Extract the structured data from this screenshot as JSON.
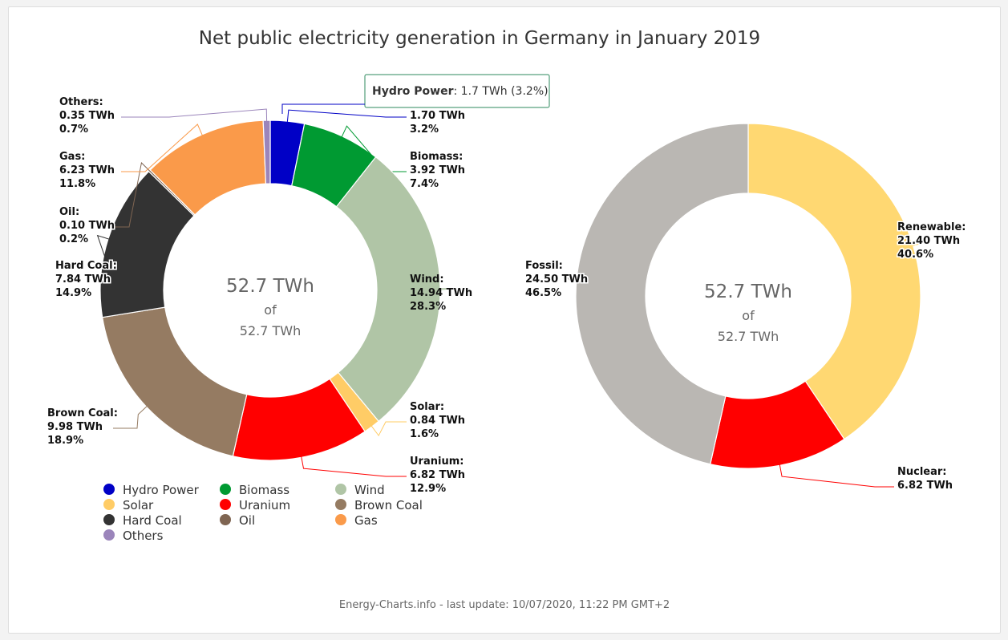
{
  "title": "Net public electricity generation in Germany in January 2019",
  "credits": "Energy-Charts.info - last update: 10/07/2020, 11:22 PM GMT+2",
  "tooltip": {
    "name": "Hydro Power",
    "value": "1.7 TWh (3.2%)"
  },
  "chart_data": [
    {
      "type": "pie",
      "variant": "donut",
      "center_value": "52.7 TWh",
      "center_of": "of",
      "center_total": "52.7 TWh",
      "unit": "TWh",
      "series": [
        {
          "name": "Hydro Power",
          "value": 1.7,
          "value_label": "1.70 TWh",
          "percent": "3.2%",
          "color": "#0000c6"
        },
        {
          "name": "Biomass",
          "value": 3.92,
          "value_label": "3.92 TWh",
          "percent": "7.4%",
          "color": "#009a32"
        },
        {
          "name": "Wind",
          "value": 14.94,
          "value_label": "14.94 TWh",
          "percent": "28.3%",
          "color": "#b0c5a6"
        },
        {
          "name": "Solar",
          "value": 0.84,
          "value_label": "0.84 TWh",
          "percent": "1.6%",
          "color": "#ffcc66"
        },
        {
          "name": "Uranium",
          "value": 6.82,
          "value_label": "6.82 TWh",
          "percent": "12.9%",
          "color": "#ff0000"
        },
        {
          "name": "Brown Coal",
          "value": 9.98,
          "value_label": "9.98 TWh",
          "percent": "18.9%",
          "color": "#957b62"
        },
        {
          "name": "Hard Coal",
          "value": 7.84,
          "value_label": "7.84 TWh",
          "percent": "14.9%",
          "color": "#333333"
        },
        {
          "name": "Oil",
          "value": 0.1,
          "value_label": "0.10 TWh",
          "percent": "0.2%",
          "color": "#7f6552"
        },
        {
          "name": "Gas",
          "value": 6.23,
          "value_label": "6.23 TWh",
          "percent": "11.8%",
          "color": "#fa9a4a"
        },
        {
          "name": "Others",
          "value": 0.35,
          "value_label": "0.35 TWh",
          "percent": "0.7%",
          "color": "#9b85bb"
        }
      ],
      "legend": {
        "position": "bottom"
      }
    },
    {
      "type": "pie",
      "variant": "donut",
      "center_value": "52.7 TWh",
      "center_of": "of",
      "center_total": "52.7 TWh",
      "unit": "TWh",
      "series": [
        {
          "name": "Renewable",
          "value": 21.4,
          "value_label": "21.40 TWh",
          "percent": "40.6%",
          "color": "#ffd872"
        },
        {
          "name": "Nuclear",
          "value": 6.82,
          "value_label": "6.82 TWh",
          "percent": "12.9%",
          "color": "#ff0000"
        },
        {
          "name": "Fossil",
          "value": 24.5,
          "value_label": "24.50 TWh",
          "percent": "46.5%",
          "color": "#bab7b3"
        }
      ]
    }
  ]
}
